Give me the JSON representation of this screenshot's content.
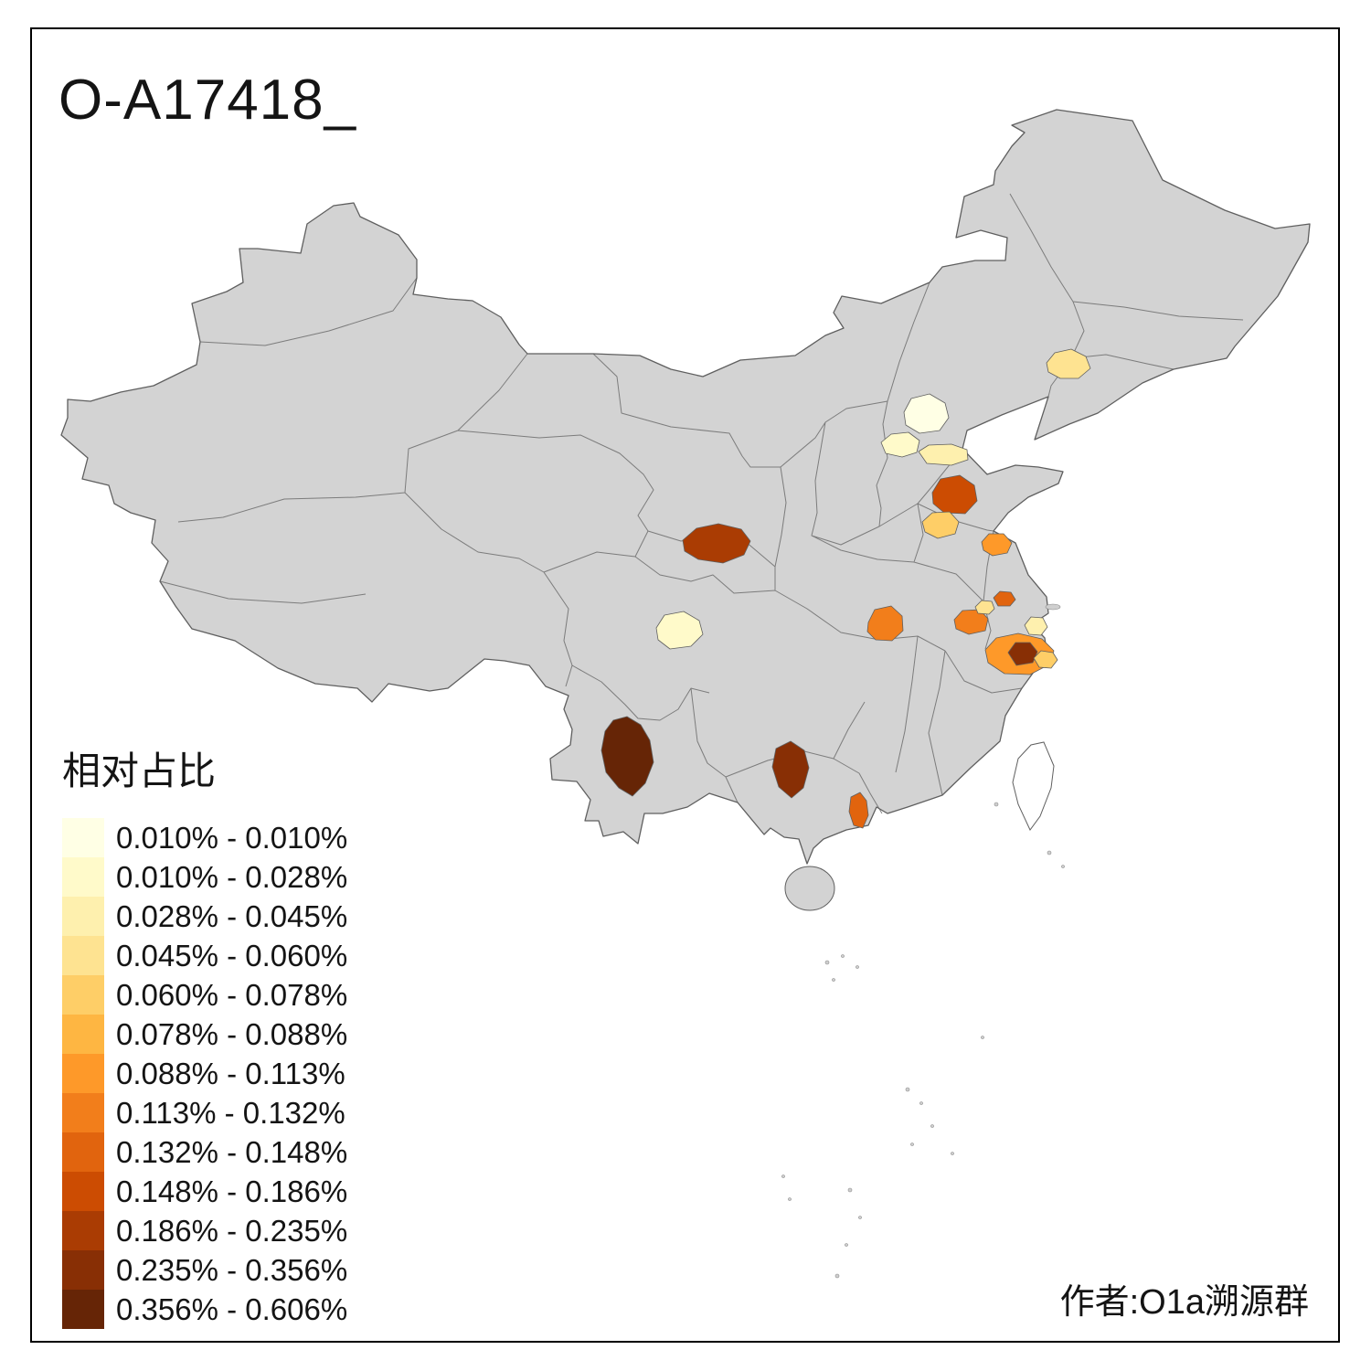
{
  "chart_data": {
    "type": "choropleth",
    "title": "O-A17418_",
    "legend_title": "相对占比",
    "author": "作者:O1a溯源群",
    "unit": "%",
    "bins": [
      {
        "label": "0.010% - 0.010%",
        "color": "#FFFFE5"
      },
      {
        "label": "0.010% - 0.028%",
        "color": "#FFFACA"
      },
      {
        "label": "0.028% - 0.045%",
        "color": "#FEF0AE"
      },
      {
        "label": "0.045% - 0.060%",
        "color": "#FEE391"
      },
      {
        "label": "0.060% - 0.078%",
        "color": "#FECE67"
      },
      {
        "label": "0.078% - 0.088%",
        "color": "#FEB642"
      },
      {
        "label": "0.088% - 0.113%",
        "color": "#FE9929"
      },
      {
        "label": "0.113% - 0.132%",
        "color": "#F27E1B"
      },
      {
        "label": "0.132% - 0.148%",
        "color": "#E1640E"
      },
      {
        "label": "0.148% - 0.186%",
        "color": "#CC4C02"
      },
      {
        "label": "0.186% - 0.235%",
        "color": "#AA3C03"
      },
      {
        "label": "0.235% - 0.356%",
        "color": "#882F05"
      },
      {
        "label": "0.356% - 0.606%",
        "color": "#662506"
      }
    ],
    "regions": [
      {
        "id": "northeast-patch",
        "bin": 4
      },
      {
        "id": "beijing-patch",
        "bin": 1
      },
      {
        "id": "hebei-west-patch",
        "bin": 2
      },
      {
        "id": "hebei-south-patch",
        "bin": 3
      },
      {
        "id": "shandong-west-patch",
        "bin": 10
      },
      {
        "id": "shandong-south-patch",
        "bin": 5
      },
      {
        "id": "jiangsu-north-patch",
        "bin": 7
      },
      {
        "id": "shaanxi-south-patch",
        "bin": 11
      },
      {
        "id": "sichuan-patch",
        "bin": 2
      },
      {
        "id": "hubei-patch",
        "bin": 8
      },
      {
        "id": "anhui-east-patch",
        "bin": 8
      },
      {
        "id": "nanjing-patch",
        "bin": 9
      },
      {
        "id": "anhui-southeast-patch",
        "bin": 4
      },
      {
        "id": "shanghai-patch",
        "bin": 3
      },
      {
        "id": "zhejiang-north-patch",
        "bin": 7
      },
      {
        "id": "zhejiang-core-patch",
        "bin": 12
      },
      {
        "id": "zhejiang-east-patch",
        "bin": 5
      },
      {
        "id": "yunnan-patch",
        "bin": 13
      },
      {
        "id": "guizhou-south-patch",
        "bin": 12
      },
      {
        "id": "guangxi-east-patch",
        "bin": 9
      }
    ],
    "map_colors": {
      "land": "#D3D3D3",
      "border": "#5F5F5F",
      "background": "#FFFFFF",
      "taiwan_fill": "#FFFFFF",
      "frame": "#000000"
    }
  }
}
